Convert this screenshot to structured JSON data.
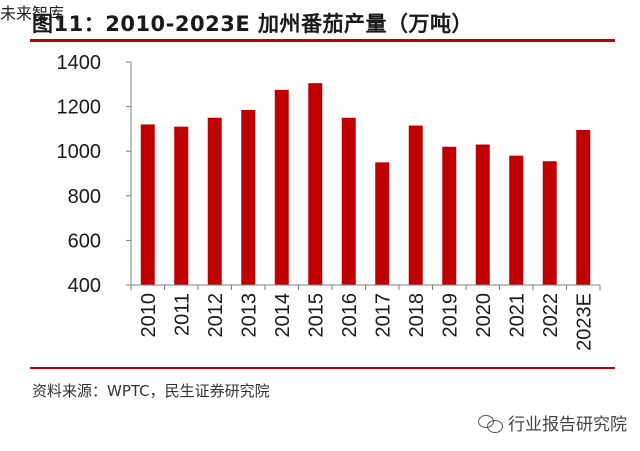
{
  "header": {
    "title": "图11：2010-2023E 加州番茄产量（万吨）"
  },
  "footer": {
    "source": "资料来源：WPTC，民生证券研究院",
    "watermark": "行业报告研究院",
    "watermark_sub": "未来智库"
  },
  "colors": {
    "bar": "#c00000",
    "accent": "#c00000",
    "axis": "#7f7f7f"
  },
  "chart_data": {
    "type": "bar",
    "title": "图11：2010-2023E 加州番茄产量（万吨）",
    "xlabel": "",
    "ylabel": "",
    "ylim": [
      400,
      1400
    ],
    "yticks": [
      400,
      600,
      800,
      1000,
      1200,
      1400
    ],
    "grid": false,
    "categories": [
      "2010",
      "2011",
      "2012",
      "2013",
      "2014",
      "2015",
      "2016",
      "2017",
      "2018",
      "2019",
      "2020",
      "2021",
      "2022",
      "2023E"
    ],
    "values": [
      1120,
      1110,
      1150,
      1185,
      1275,
      1305,
      1150,
      950,
      1115,
      1020,
      1030,
      980,
      955,
      1095
    ]
  }
}
